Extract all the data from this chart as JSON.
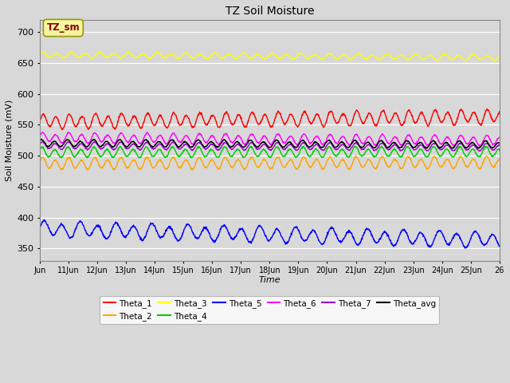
{
  "title": "TZ Soil Moisture",
  "xlabel": "Time",
  "ylabel": "Soil Moisture (mV)",
  "ylim": [
    330,
    720
  ],
  "yticks": [
    350,
    400,
    450,
    500,
    550,
    600,
    650,
    700
  ],
  "background_color": "#d8d8d8",
  "plot_bg_color": "#d8d8d8",
  "legend_label": "TZ_sm",
  "legend_label_color": "#8B0000",
  "legend_box_facecolor": "#f5f5a0",
  "legend_box_edgecolor": "#999900",
  "series": {
    "Theta_1": {
      "color": "#ff0000",
      "base": 555,
      "amplitude": 10,
      "trend": 0.5,
      "freq": 2.2,
      "phase": 0.0
    },
    "Theta_2": {
      "color": "#ffa500",
      "base": 487,
      "amplitude": 8,
      "trend": 0.1,
      "freq": 2.2,
      "phase": 0.3
    },
    "Theta_3": {
      "color": "#ffff00",
      "base": 663,
      "amplitude": 4,
      "trend": -0.25,
      "freq": 2.0,
      "phase": 0.5
    },
    "Theta_4": {
      "color": "#00cc00",
      "base": 505,
      "amplitude": 7,
      "trend": 0.05,
      "freq": 2.2,
      "phase": 0.6
    },
    "Theta_5": {
      "color": "#0000ff",
      "base": 381,
      "amplitude": 11,
      "trend": -1.1,
      "freq": 1.6,
      "phase": 0.1
    },
    "Theta_6": {
      "color": "#ff00ff",
      "base": 529,
      "amplitude": 7,
      "trend": -0.3,
      "freq": 2.2,
      "phase": 0.2
    },
    "Theta_7": {
      "color": "#9900cc",
      "base": 516,
      "amplitude": 5,
      "trend": -0.15,
      "freq": 2.2,
      "phase": 0.4
    },
    "Theta_avg": {
      "color": "#000000",
      "base": 520,
      "amplitude": 5,
      "trend": -0.15,
      "freq": 2.2,
      "phase": 0.8
    }
  },
  "n_points": 1440,
  "x_start": 10,
  "x_end": 26,
  "xtick_labels": [
    "Jun",
    "11Jun",
    "12Jun",
    "13Jun",
    "14Jun",
    "15Jun",
    "16Jun",
    "17Jun",
    "18Jun",
    "19Jun",
    "20Jun",
    "21Jun",
    "22Jun",
    "23Jun",
    "24Jun",
    "25Jun",
    "26"
  ],
  "xtick_positions": [
    10,
    11,
    12,
    13,
    14,
    15,
    16,
    17,
    18,
    19,
    20,
    21,
    22,
    23,
    24,
    25,
    26
  ]
}
